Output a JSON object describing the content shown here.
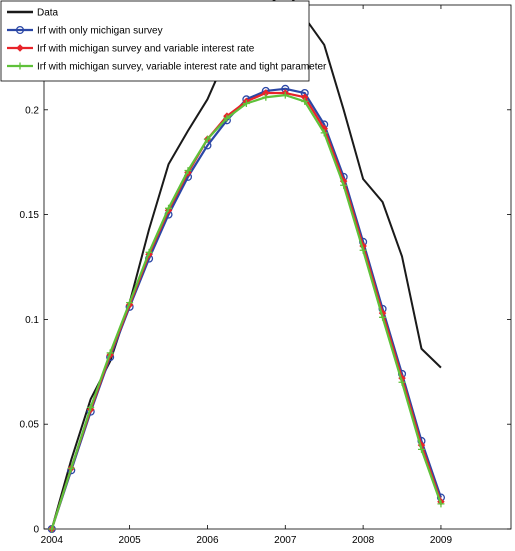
{
  "chart_data": {
    "type": "line",
    "title": "",
    "xlabel": "",
    "ylabel": "",
    "xlim": [
      2003.9,
      2009.9
    ],
    "ylim": [
      0,
      0.25
    ],
    "x_ticks": [
      2004,
      2005,
      2006,
      2007,
      2008,
      2009
    ],
    "y_ticks": [
      0,
      0.05,
      0.1,
      0.15,
      0.2
    ],
    "x_tick_labels": [
      "2004",
      "2005",
      "2006",
      "2007",
      "2008",
      "2009"
    ],
    "y_tick_labels": [
      "0",
      "0.05",
      "0.1",
      "0.15",
      "0.2"
    ],
    "grid": false,
    "legend_position": "top-left",
    "series": [
      {
        "name": "Data",
        "color": "#1a1a1a",
        "marker": "none",
        "x": [
          2004,
          2004.25,
          2004.5,
          2004.75,
          2005,
          2005.25,
          2005.5,
          2005.75,
          2006,
          2006.25,
          2006.5,
          2006.75,
          2007,
          2007.25,
          2007.5,
          2007.75,
          2008,
          2008.25,
          2008.5,
          2008.75,
          2009
        ],
        "values": [
          0.0,
          0.033,
          0.062,
          0.08,
          0.108,
          0.143,
          0.174,
          0.19,
          0.205,
          0.226,
          0.238,
          0.248,
          0.258,
          0.244,
          0.231,
          0.2,
          0.167,
          0.156,
          0.13,
          0.086,
          0.077
        ]
      },
      {
        "name": "Irf with only michigan survey",
        "color": "#2b47a6",
        "marker": "circle",
        "x": [
          2004,
          2004.25,
          2004.5,
          2004.75,
          2005,
          2005.25,
          2005.5,
          2005.75,
          2006,
          2006.25,
          2006.5,
          2006.75,
          2007,
          2007.25,
          2007.5,
          2007.75,
          2008,
          2008.25,
          2008.5,
          2008.75,
          2009
        ],
        "values": [
          0.0,
          0.028,
          0.056,
          0.082,
          0.106,
          0.129,
          0.15,
          0.168,
          0.183,
          0.195,
          0.205,
          0.209,
          0.21,
          0.208,
          0.193,
          0.168,
          0.137,
          0.105,
          0.074,
          0.042,
          0.015
        ]
      },
      {
        "name": "Irf with michigan survey and variable interest rate",
        "color": "#e8242a",
        "marker": "diamond",
        "x": [
          2004,
          2004.25,
          2004.5,
          2004.75,
          2005,
          2005.25,
          2005.5,
          2005.75,
          2006,
          2006.25,
          2006.5,
          2006.75,
          2007,
          2007.25,
          2007.5,
          2007.75,
          2008,
          2008.25,
          2008.5,
          2008.75,
          2009
        ],
        "values": [
          0.0,
          0.029,
          0.057,
          0.083,
          0.107,
          0.131,
          0.152,
          0.17,
          0.186,
          0.197,
          0.204,
          0.208,
          0.208,
          0.206,
          0.191,
          0.166,
          0.135,
          0.103,
          0.072,
          0.04,
          0.013
        ]
      },
      {
        "name": "Irf with michigan survey, variable interest rate and tight parameter",
        "color": "#5fc13a",
        "marker": "plus",
        "x": [
          2004,
          2004.25,
          2004.5,
          2004.75,
          2005,
          2005.25,
          2005.5,
          2005.75,
          2006,
          2006.25,
          2006.5,
          2006.75,
          2007,
          2007.25,
          2007.5,
          2007.75,
          2008,
          2008.25,
          2008.5,
          2008.75,
          2009
        ],
        "values": [
          0.0,
          0.029,
          0.058,
          0.084,
          0.108,
          0.132,
          0.153,
          0.171,
          0.186,
          0.196,
          0.203,
          0.206,
          0.207,
          0.204,
          0.189,
          0.164,
          0.133,
          0.101,
          0.07,
          0.038,
          0.012
        ]
      }
    ]
  }
}
